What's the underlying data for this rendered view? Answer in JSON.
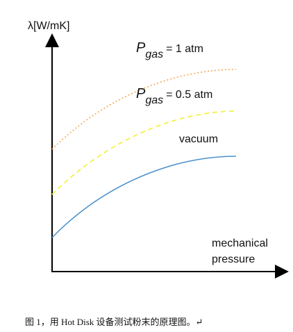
{
  "axes": {
    "y_label": "λ[W/mK]",
    "x_label": [
      "mechanical",
      "pressure"
    ]
  },
  "curves": [
    {
      "symbol": "P",
      "subscript": "gas",
      "label": "= 1 atm"
    },
    {
      "symbol": "P",
      "subscript": "gas",
      "label": "= 0.5 atm"
    },
    {
      "label": "vacuum"
    }
  ],
  "caption": "图 1，用 Hot Disk 设备测试粉末的原理图。↵"
}
